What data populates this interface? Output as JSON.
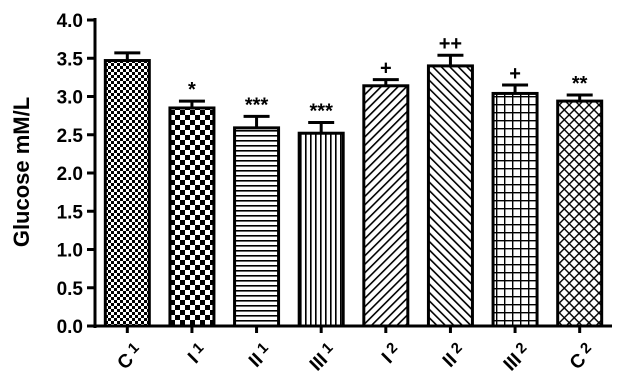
{
  "chart_data": {
    "type": "bar",
    "ylabel": "Glucose mM/L",
    "ylim": [
      0,
      4.0
    ],
    "yticks": [
      "0.0",
      "0.5",
      "1.0",
      "1.5",
      "2.0",
      "2.5",
      "3.0",
      "3.5",
      "4.0"
    ],
    "categories": [
      {
        "main": "C",
        "sub": "1"
      },
      {
        "main": "I",
        "sub": "1"
      },
      {
        "main": "II",
        "sub": "1"
      },
      {
        "main": "III",
        "sub": "1"
      },
      {
        "main": "I",
        "sub": "2"
      },
      {
        "main": "II",
        "sub": "2"
      },
      {
        "main": "III",
        "sub": "2"
      },
      {
        "main": "C",
        "sub": "2"
      }
    ],
    "values": [
      3.47,
      2.85,
      2.59,
      2.52,
      3.14,
      3.4,
      3.04,
      2.94
    ],
    "errors": [
      0.1,
      0.09,
      0.15,
      0.14,
      0.08,
      0.14,
      0.11,
      0.08
    ],
    "annotations": [
      "",
      "*",
      "***",
      "***",
      "+",
      "++",
      "+",
      "**"
    ],
    "patterns": [
      "checker-fine",
      "checker-large",
      "horizontal",
      "vertical",
      "diag-up",
      "diag-down",
      "grid",
      "crosshatch"
    ]
  }
}
